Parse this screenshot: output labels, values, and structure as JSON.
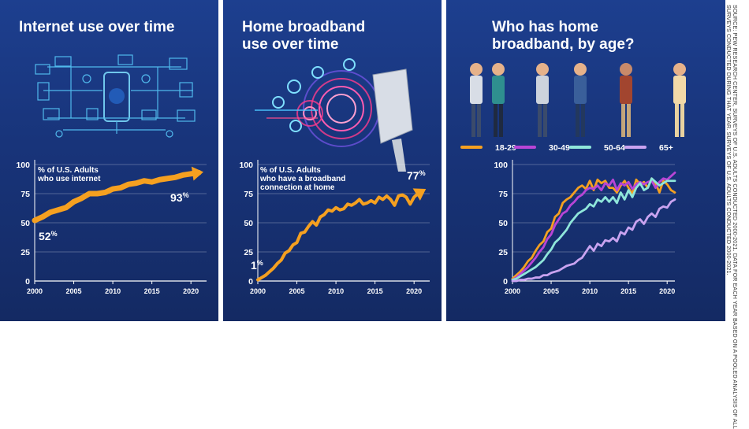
{
  "panels": [
    {
      "title_lines": [
        "Internet use over time"
      ],
      "series_label_lines": [
        "% of U.S. Adults",
        "who use internet"
      ],
      "start_label": {
        "value": "52",
        "suffix": "%"
      },
      "end_label": {
        "value": "93",
        "suffix": "%"
      }
    },
    {
      "title_lines": [
        "Home broadband",
        "use over time"
      ],
      "series_label_lines": [
        "% of U.S. Adults",
        "who have a broadband",
        "connection at home"
      ],
      "start_label": {
        "value": "1",
        "suffix": "%"
      },
      "end_label": {
        "value": "77",
        "suffix": "%"
      }
    },
    {
      "title_lines": [
        "Who has home",
        "broadband, by age?"
      ]
    }
  ],
  "source_lines": [
    "SOURCE: PEW RESEARCH CENTER, SURVEYS OF U.S. ADULTS CONDUCTED 2000-2021. DATA FOR EACH YEAR BASED ON A POOLED ANALYSIS OF ALL",
    "SURVEYS CONDUCTED DURING THAT YEAR. SURVEYS OF U.S. ADULTS CONDUCTED 2000-2021."
  ],
  "colors": {
    "orange": "#f5a020",
    "purple": "#b845d6",
    "teal": "#8fe6da",
    "lavender": "#c9a3f0"
  },
  "chart_data": [
    {
      "type": "line",
      "title": "Internet use over time",
      "ylabel": "% of U.S. Adults who use internet",
      "x": [
        2000,
        2001,
        2002,
        2003,
        2004,
        2005,
        2006,
        2007,
        2008,
        2009,
        2010,
        2011,
        2012,
        2013,
        2014,
        2015,
        2016,
        2017,
        2018,
        2019,
        2020,
        2021
      ],
      "series": [
        {
          "name": "% of U.S. Adults who use internet",
          "values": [
            52,
            55,
            59,
            61,
            63,
            68,
            71,
            75,
            75,
            76,
            79,
            80,
            83,
            84,
            86,
            85,
            87,
            88,
            89,
            91,
            92,
            93
          ]
        }
      ],
      "xticks": [
        2000,
        2005,
        2010,
        2015,
        2020
      ],
      "yticks": [
        0,
        25,
        50,
        75,
        100
      ],
      "xlim": [
        2000,
        2022
      ],
      "ylim": [
        0,
        100
      ]
    },
    {
      "type": "line",
      "title": "Home broadband use over time",
      "ylabel": "% of U.S. Adults who have a broadband connection at home",
      "x": [
        2000,
        2000.5,
        2001,
        2001.5,
        2002,
        2002.5,
        2003,
        2003.5,
        2004,
        2004.5,
        2005,
        2005.5,
        2006,
        2006.5,
        2007,
        2007.5,
        2008,
        2008.5,
        2009,
        2009.5,
        2010,
        2010.5,
        2011,
        2011.5,
        2012,
        2012.5,
        2013,
        2013.5,
        2014,
        2014.5,
        2015,
        2015.5,
        2016,
        2016.5,
        2017,
        2017.5,
        2018,
        2018.5,
        2019,
        2019.5,
        2020,
        2020.5,
        2021
      ],
      "series": [
        {
          "name": "% of U.S. Adults who have a broadband connection at home",
          "values": [
            1,
            3,
            5,
            8,
            11,
            15,
            18,
            24,
            26,
            31,
            33,
            41,
            42,
            47,
            51,
            48,
            55,
            57,
            61,
            60,
            63,
            61,
            62,
            66,
            65,
            67,
            70,
            66,
            67,
            69,
            67,
            72,
            70,
            73,
            70,
            65,
            73,
            74,
            72,
            66,
            72,
            75,
            77
          ]
        }
      ],
      "xticks": [
        2000,
        2005,
        2010,
        2015,
        2020
      ],
      "yticks": [
        0,
        25,
        50,
        75,
        100
      ],
      "xlim": [
        2000,
        2022
      ],
      "ylim": [
        0,
        100
      ]
    },
    {
      "type": "line",
      "title": "Who has home broadband, by age?",
      "x": [
        2000,
        2000.5,
        2001,
        2001.5,
        2002,
        2002.5,
        2003,
        2003.5,
        2004,
        2004.5,
        2005,
        2005.5,
        2006,
        2006.5,
        2007,
        2007.5,
        2008,
        2008.5,
        2009,
        2009.5,
        2010,
        2010.5,
        2011,
        2011.5,
        2012,
        2012.5,
        2013,
        2013.5,
        2014,
        2014.5,
        2015,
        2015.5,
        2016,
        2016.5,
        2017,
        2017.5,
        2018,
        2018.5,
        2019,
        2019.5,
        2020,
        2020.5,
        2021
      ],
      "series": [
        {
          "name": "18-29",
          "color": "#f5a020",
          "values": [
            2,
            5,
            8,
            12,
            17,
            20,
            26,
            31,
            34,
            42,
            45,
            55,
            58,
            67,
            70,
            72,
            76,
            80,
            82,
            79,
            86,
            78,
            87,
            84,
            86,
            80,
            80,
            76,
            82,
            86,
            80,
            75,
            87,
            83,
            85,
            80,
            88,
            84,
            76,
            86,
            83,
            78,
            76
          ]
        },
        {
          "name": "30-49",
          "color": "#b845d6",
          "values": [
            1,
            3,
            6,
            9,
            12,
            16,
            20,
            25,
            29,
            36,
            40,
            48,
            53,
            58,
            60,
            65,
            68,
            72,
            74,
            78,
            80,
            79,
            82,
            78,
            84,
            82,
            87,
            78,
            84,
            82,
            85,
            79,
            83,
            85,
            83,
            85,
            86,
            80,
            85,
            88,
            87,
            90,
            93
          ]
        },
        {
          "name": "50-64",
          "color": "#8fe6da",
          "values": [
            1,
            2,
            4,
            6,
            8,
            10,
            12,
            15,
            18,
            23,
            27,
            33,
            36,
            40,
            44,
            50,
            54,
            58,
            60,
            62,
            66,
            64,
            70,
            68,
            72,
            68,
            72,
            67,
            76,
            70,
            78,
            72,
            80,
            84,
            78,
            80,
            88,
            85,
            82,
            84,
            86,
            86,
            86
          ]
        },
        {
          "name": "65+",
          "color": "#c9a3f0",
          "values": [
            0,
            0,
            1,
            1,
            2,
            2,
            3,
            3,
            5,
            5,
            7,
            8,
            9,
            11,
            13,
            14,
            15,
            18,
            20,
            25,
            30,
            26,
            32,
            30,
            35,
            34,
            37,
            34,
            42,
            40,
            46,
            44,
            51,
            53,
            49,
            55,
            58,
            55,
            62,
            64,
            63,
            68,
            70
          ]
        }
      ],
      "xticks": [
        2000,
        2005,
        2010,
        2015,
        2020
      ],
      "yticks": [
        0,
        25,
        50,
        75,
        100
      ],
      "xlim": [
        2000,
        2021
      ],
      "ylim": [
        0,
        100
      ]
    }
  ]
}
